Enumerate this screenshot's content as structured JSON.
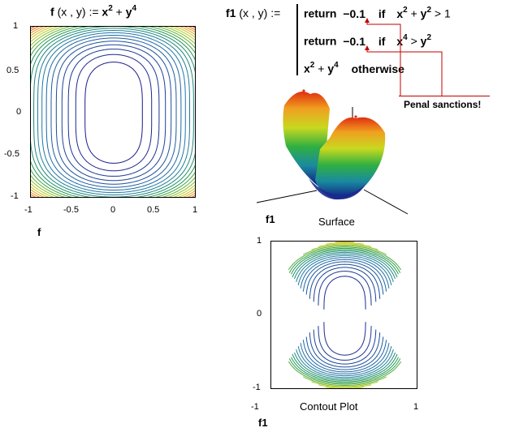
{
  "f_def": {
    "name": "f",
    "args": "(x , y)",
    "assign": ":=",
    "expr_x": "x",
    "exp_2": "2",
    "plus": "+",
    "expr_y": "y",
    "exp_4": "4"
  },
  "f1_def": {
    "name": "f1",
    "args": "(x , y)",
    "assign": ":=",
    "line1": {
      "keyword": "return",
      "value": "−0.1",
      "if": "if",
      "x": "x",
      "x_exp": "2",
      "plus": "+",
      "y": "y",
      "y_exp": "2",
      "op": ">",
      "rhs": "1"
    },
    "line2": {
      "keyword": "return",
      "value": "−0.1",
      "if": "if",
      "x": "x",
      "x_exp": "4",
      "op": ">",
      "y": "y",
      "y_exp": "2"
    },
    "line3": {
      "x": "x",
      "x_exp": "2",
      "plus": "+",
      "y": "y",
      "y_exp": "4",
      "otherwise": "otherwise"
    }
  },
  "annotation": {
    "text": "Penal sanctions!",
    "color": "#c00000"
  },
  "plot_f": {
    "label": "f",
    "x_ticks": [
      "-1",
      "-0.5",
      "0",
      "0.5",
      "1"
    ],
    "y_ticks": [
      "1",
      "0.5",
      "0",
      "-0.5",
      "-1"
    ]
  },
  "plot_surface": {
    "label": "f1",
    "caption": "Surface"
  },
  "plot_contour": {
    "label": "f1",
    "caption": "Contout Plot",
    "x_ticks": [
      "-1",
      "1"
    ],
    "y_ticks": [
      "1",
      "0",
      "-1"
    ]
  },
  "colors": {
    "low": "#1a1a8c",
    "mid": "#1f9a4a",
    "high": "#e03010"
  }
}
